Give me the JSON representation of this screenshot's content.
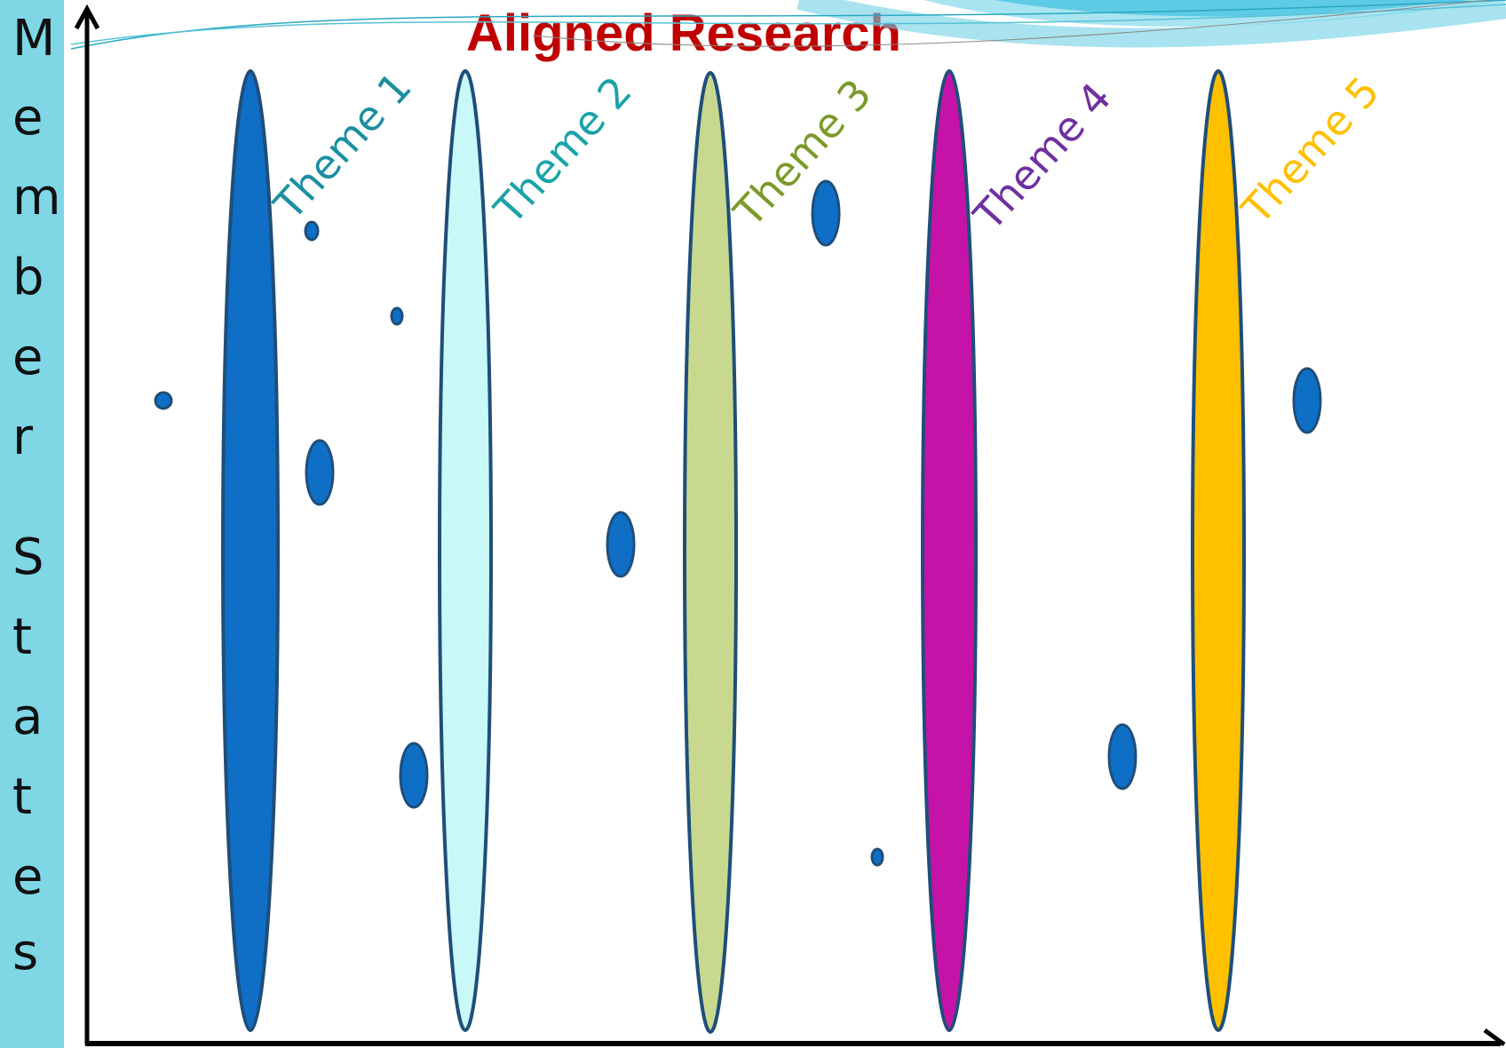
{
  "title": "Aligned Research",
  "y_axis_label": "Member States",
  "themes": [
    {
      "label": "Theme 1",
      "fill": "#0f6fc6",
      "text_color": "#1b8fa0"
    },
    {
      "label": "Theme 2",
      "fill": "#c8f8f8",
      "text_color": "#1aa3a8"
    },
    {
      "label": "Theme 3",
      "fill": "#c8d98f",
      "text_color": "#7a9a2a"
    },
    {
      "label": "Theme 4",
      "fill": "#c513a8",
      "text_color": "#7030a0"
    },
    {
      "label": "Theme 5",
      "fill": "#ffc000",
      "text_color": "#ffc000"
    }
  ],
  "colors": {
    "sidebar": "#7fd7e6",
    "axis": "#000000",
    "outline": "#1f4e79",
    "dot_fill": "#0f6fc6",
    "title": "#c00000",
    "wave": "#5ecbe6"
  }
}
